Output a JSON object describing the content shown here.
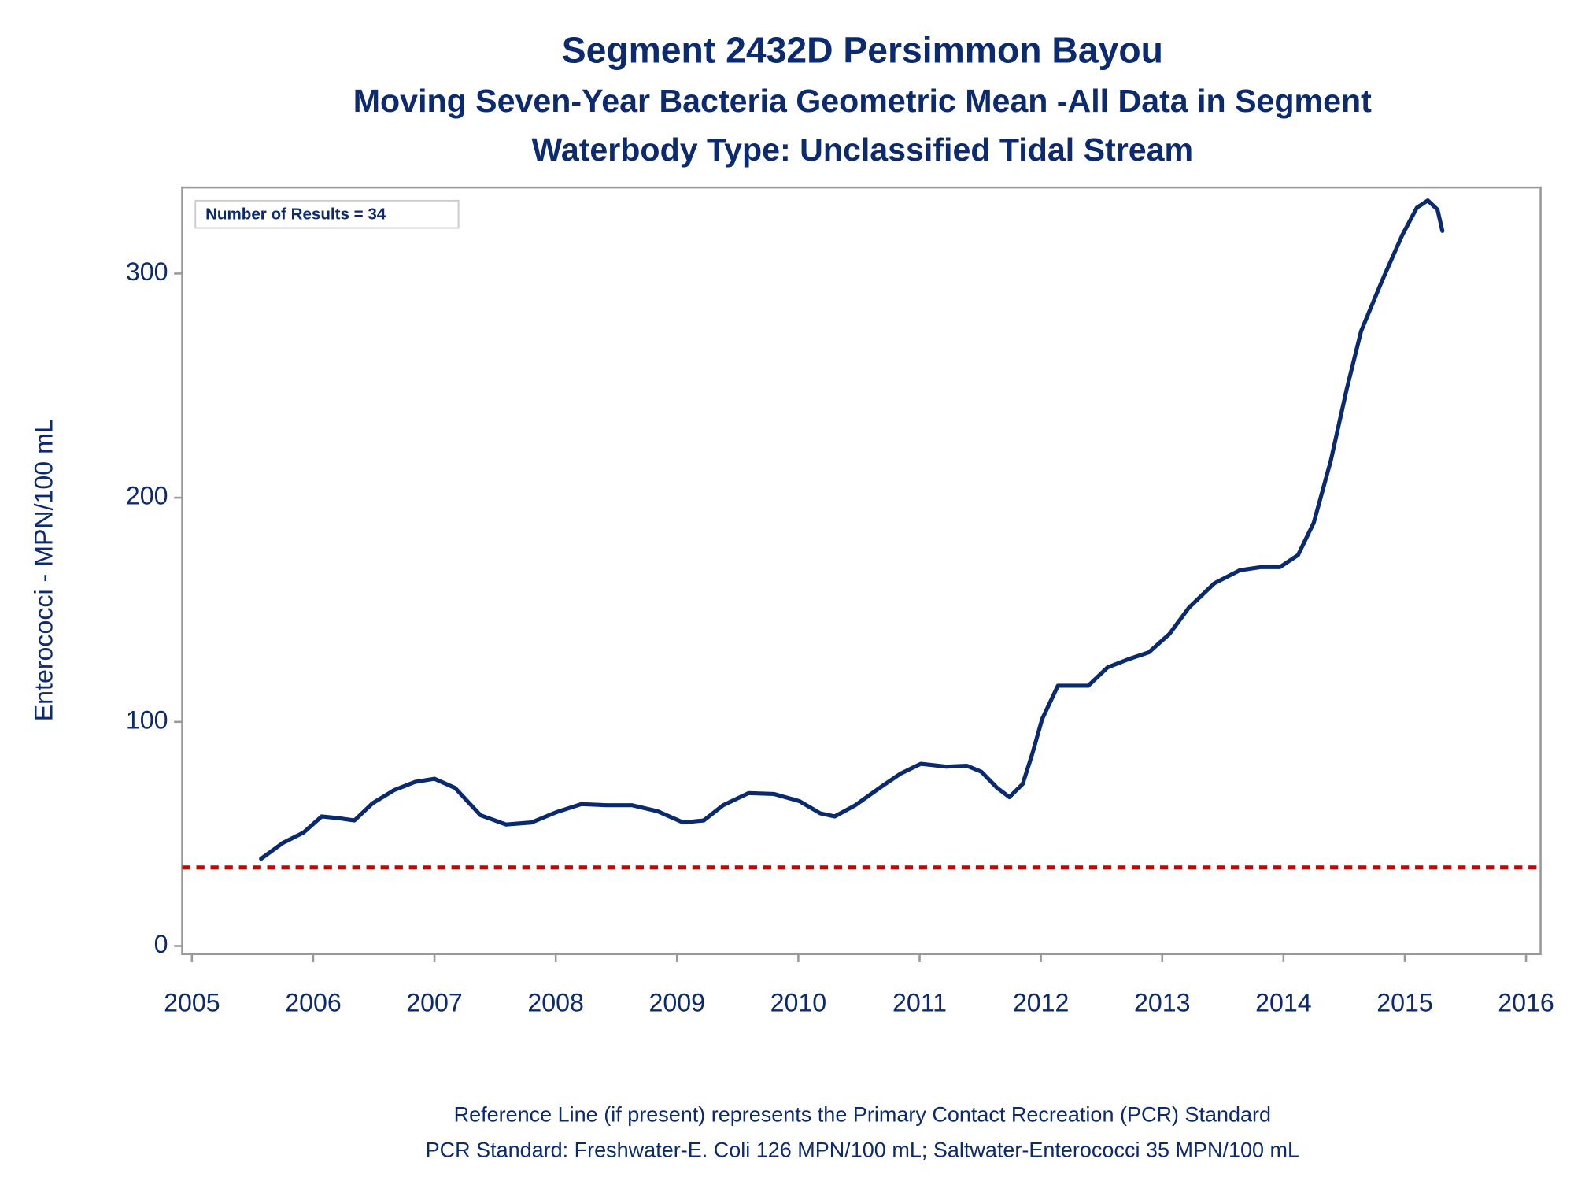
{
  "chart_data": {
    "type": "line",
    "title": "Segment 2432D   Persimmon Bayou",
    "subtitle": "Moving Seven-Year Bacteria Geometric Mean -All Data in Segment",
    "subtitle2": "Waterbody Type: Unclassified Tidal Stream",
    "y_label": "Enterococci - MPN/100 mL",
    "annotation": "Number of Results = 34",
    "footnotes": [
      "Reference Line (if present) represents the Primary Contact Recreation (PCR) Standard",
      "PCR Standard: Freshwater-E. Coli 126 MPN/100 mL; Saltwater-Enterococci 35 MPN/100 mL"
    ],
    "x": [
      2005.57,
      2005.75,
      2005.92,
      2006.07,
      2006.21,
      2006.34,
      2006.49,
      2006.67,
      2006.84,
      2007.0,
      2007.17,
      2007.38,
      2007.59,
      2007.8,
      2008.0,
      2008.21,
      2008.42,
      2008.63,
      2008.84,
      2009.05,
      2009.22,
      2009.38,
      2009.59,
      2009.8,
      2010.01,
      2010.18,
      2010.3,
      2010.47,
      2010.68,
      2010.84,
      2011.01,
      2011.22,
      2011.39,
      2011.51,
      2011.64,
      2011.74,
      2011.85,
      2011.93,
      2012.01,
      2012.14,
      2012.26,
      2012.39,
      2012.55,
      2012.72,
      2012.89,
      2013.06,
      2013.22,
      2013.43,
      2013.64,
      2013.81,
      2013.97,
      2014.12,
      2014.25,
      2014.39,
      2014.52,
      2014.64,
      2014.81,
      2014.98,
      2015.1,
      2015.19,
      2015.27,
      2015.31
    ],
    "series": [
      {
        "color": "#0a2a70",
        "values": [
          38.9,
          46,
          50.6,
          57.8,
          57,
          56,
          63.7,
          69.6,
          73.2,
          74.6,
          70.5,
          58.3,
          54.2,
          55.1,
          59.6,
          63.3,
          62.8,
          62.8,
          60.1,
          55.1,
          56,
          62.8,
          68.2,
          67.8,
          64.6,
          59.2,
          57.8,
          62.8,
          70.9,
          76.8,
          81.3,
          80,
          80.4,
          77.7,
          70.5,
          66.4,
          72.3,
          85.9,
          101.2,
          116.1,
          116.1,
          116.1,
          124.3,
          127.9,
          131,
          139.2,
          150.9,
          161.8,
          167.6,
          169,
          169,
          174.4,
          188.9,
          216.5,
          248.1,
          274.3,
          296.4,
          317.2,
          329.4,
          332.6,
          328.5,
          319
        ]
      }
    ],
    "reference_line": {
      "value": 35,
      "color": "#cc0000"
    },
    "xlim": [
      2004.92,
      2016.12
    ],
    "xticks": [
      2005,
      2006,
      2007,
      2008,
      2009,
      2010,
      2011,
      2012,
      2013,
      2014,
      2015,
      2016
    ],
    "ylim": [
      -3.6,
      338.4
    ],
    "yticks": [
      0,
      100,
      200,
      300
    ]
  }
}
